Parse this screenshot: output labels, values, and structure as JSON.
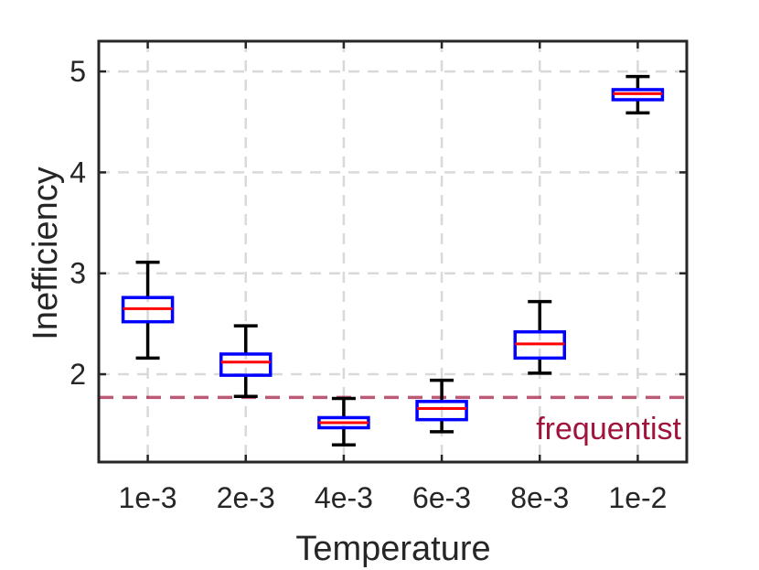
{
  "chart_data": {
    "type": "box",
    "xlabel": "Temperature",
    "ylabel": "Inefficiency",
    "ylim": [
      1.13,
      5.3
    ],
    "yticks": [
      2,
      3,
      4,
      5
    ],
    "grid": true,
    "categories": [
      "1e-3",
      "2e-3",
      "4e-3",
      "6e-3",
      "8e-3",
      "1e-2"
    ],
    "boxes": [
      {
        "min": 2.16,
        "q1": 2.52,
        "median": 2.65,
        "q3": 2.76,
        "max": 3.11
      },
      {
        "min": 1.78,
        "q1": 1.99,
        "median": 2.12,
        "q3": 2.2,
        "max": 2.48
      },
      {
        "min": 1.3,
        "q1": 1.47,
        "median": 1.52,
        "q3": 1.57,
        "max": 1.76
      },
      {
        "min": 1.43,
        "q1": 1.55,
        "median": 1.66,
        "q3": 1.73,
        "max": 1.94
      },
      {
        "min": 2.01,
        "q1": 2.16,
        "median": 2.3,
        "q3": 2.42,
        "max": 2.72
      },
      {
        "min": 4.59,
        "q1": 4.72,
        "median": 4.78,
        "q3": 4.82,
        "max": 4.95
      }
    ],
    "reference_line": {
      "value": 1.77,
      "label": "frequentist",
      "color": "#a0143c",
      "style": "dashed"
    },
    "colors": {
      "box": "#0000ff",
      "median": "#ff0000",
      "whisker": "#000000",
      "grid": "#d9d9d9",
      "axis": "#262626"
    }
  }
}
